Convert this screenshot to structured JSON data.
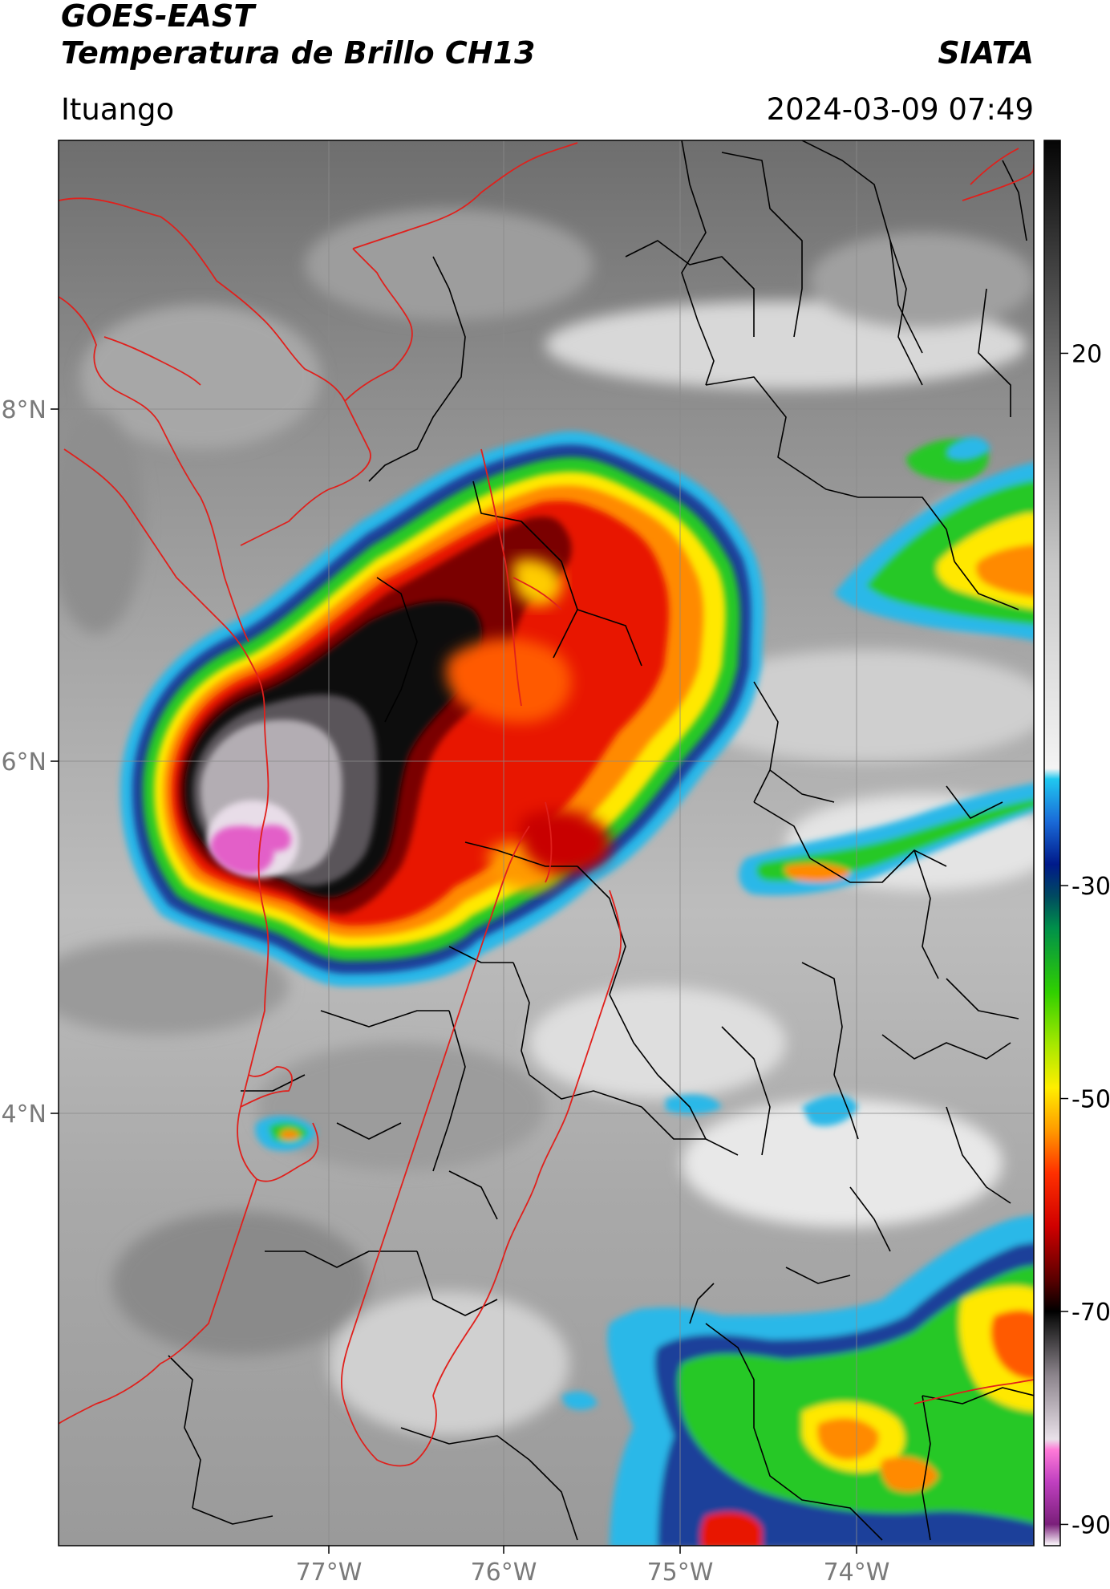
{
  "header": {
    "satellite": "GOES-EAST",
    "product": "Temperatura de Brillo CH13",
    "organization": "SIATA",
    "location": "Ituango",
    "datetime": "2024-03-09 07:49"
  },
  "map": {
    "lat_range": [
      2.5,
      8.9
    ],
    "lon_range": [
      -78.5,
      -72.9
    ],
    "lat_ticks": [
      "8°N",
      "6°N",
      "4°N"
    ],
    "lon_ticks": [
      "77°W",
      "76°W",
      "75°W",
      "74°W"
    ],
    "gridlines": true,
    "coastline_color": "#e0201c",
    "border_color": "#000000"
  },
  "colorbar": {
    "ticks": [
      "20",
      "-30",
      "-50",
      "-70",
      "-90"
    ],
    "tick_values": [
      20,
      -30,
      -50,
      -70,
      -90
    ],
    "range": [
      -92,
      40
    ],
    "stops": [
      {
        "v": -92,
        "c": "#ffffff"
      },
      {
        "v": -90,
        "c": "#7a1f7a"
      },
      {
        "v": -86,
        "c": "#c040c0"
      },
      {
        "v": -83,
        "c": "#ff7ad8"
      },
      {
        "v": -82,
        "c": "#e9e1e9"
      },
      {
        "v": -76,
        "c": "#8c848c"
      },
      {
        "v": -71,
        "c": "#1a1a1a"
      },
      {
        "v": -70,
        "c": "#000000"
      },
      {
        "v": -67,
        "c": "#5a0000"
      },
      {
        "v": -62,
        "c": "#d00000"
      },
      {
        "v": -57,
        "c": "#ff3000"
      },
      {
        "v": -53,
        "c": "#ff9a00"
      },
      {
        "v": -49,
        "c": "#ffee00"
      },
      {
        "v": -45,
        "c": "#a8e800"
      },
      {
        "v": -40,
        "c": "#30d000"
      },
      {
        "v": -34,
        "c": "#00904a"
      },
      {
        "v": -31,
        "c": "#004a60"
      },
      {
        "v": -28,
        "c": "#001a8a"
      },
      {
        "v": -24,
        "c": "#1a6ad8"
      },
      {
        "v": -20,
        "c": "#20c8f0"
      },
      {
        "v": -19,
        "c": "#f4f4f4"
      },
      {
        "v": 0,
        "c": "#c8c8c8"
      },
      {
        "v": 20,
        "c": "#6a6a6a"
      },
      {
        "v": 40,
        "c": "#050505"
      }
    ]
  }
}
